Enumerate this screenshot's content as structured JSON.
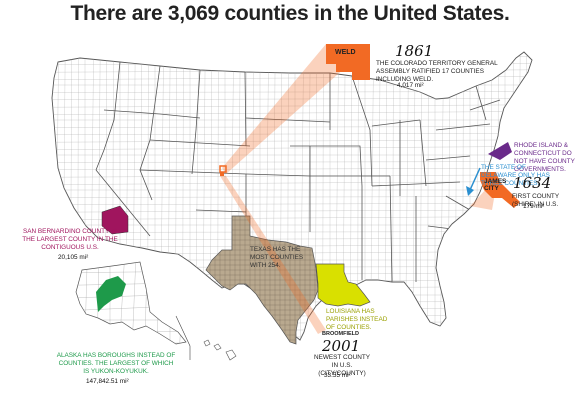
{
  "title": "There are 3,069 counties in the United States.",
  "colors": {
    "land": "#ffffff",
    "border": "#555555",
    "county": "#9a9a9a",
    "texas": "#b9a98f",
    "louisiana": "#d9e000",
    "san_bernardino": "#a0155e",
    "alaska": "#1e9a4a",
    "weld": "#f26a24",
    "ri_ct": "#6a2a8a",
    "delaware": "#2a8fd0",
    "james_city": "#f26a24",
    "broomfield": "#f26a24"
  },
  "icons": {
    "weld": "weld-county-shape",
    "ri_ct": "rhode-island-connecticut-shape",
    "delaware": "delaware-arrow-icon",
    "james_city": "james-city-county-shape"
  },
  "annotations": {
    "weld": {
      "label": "WELD",
      "year": "1861",
      "text": "THE COLORADO TERRITORY GENERAL ASSEMBLY RATIFIED 17 COUNTIES INCLUDING WELD.",
      "area": "4,017 mi²"
    },
    "ri_ct": {
      "text": "RHODE ISLAND & CONNECTICUT DO NOT HAVE COUNTY GOVERNMENTS."
    },
    "delaware": {
      "text": "THE STATE OF DELAWARE ONLY HAS THREE COUNTIES."
    },
    "james_city": {
      "label": "JAMES CITY",
      "year": "1634",
      "text": "FIRST COUNTY (SHIRE) IN U.S.",
      "area": "179 mi²"
    },
    "san_bernardino": {
      "text": "SAN BERNARDINO COUNTY IS THE LARGEST COUNTY IN THE CONTIGUOUS U.S.",
      "area": "20,105 mi²"
    },
    "texas": {
      "text": "TEXAS HAS THE MOST COUNTIES WITH 254."
    },
    "louisiana": {
      "text": "LOUISIANA HAS PARISHES INSTEAD OF COUNTIES."
    },
    "broomfield": {
      "label": "BROOMFIELD",
      "year": "2001",
      "text": "NEWEST COUNTY IN U.S. (CITY/COUNTY)",
      "area": "33.55 mi²"
    },
    "alaska": {
      "text": "ALASKA HAS BOROUGHS INSTEAD OF COUNTIES. THE LARGEST OF WHICH IS YUKON-KOYUKUK.",
      "area": "147,842.51 mi²"
    }
  }
}
